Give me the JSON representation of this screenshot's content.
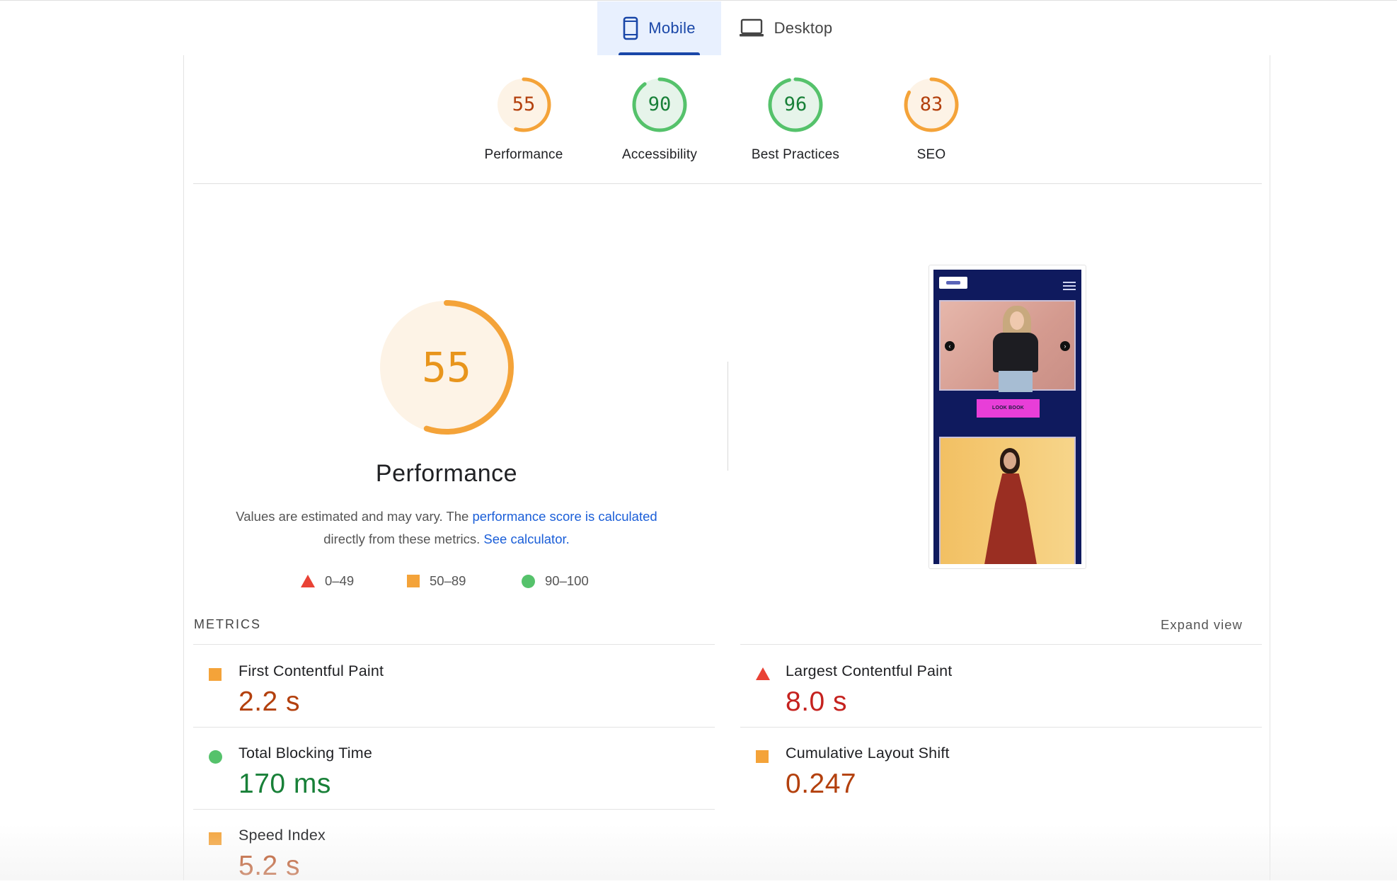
{
  "tabs": [
    {
      "label": "Mobile",
      "active": true,
      "icon": "phone-icon"
    },
    {
      "label": "Desktop",
      "active": false,
      "icon": "laptop-icon"
    }
  ],
  "categories": [
    {
      "score": "55",
      "label": "Performance",
      "color": "#f4a339",
      "text_color": "#b3400d",
      "bg": "#fdf3e6",
      "fraction": 0.55
    },
    {
      "score": "90",
      "label": "Accessibility",
      "color": "#55c26b",
      "text_color": "#188038",
      "bg": "#e6f4ea",
      "fraction": 0.9
    },
    {
      "score": "96",
      "label": "Best Practices",
      "color": "#55c26b",
      "text_color": "#188038",
      "bg": "#e6f4ea",
      "fraction": 0.96
    },
    {
      "score": "83",
      "label": "SEO",
      "color": "#f4a339",
      "text_color": "#b3400d",
      "bg": "#fdf3e6",
      "fraction": 0.83
    }
  ],
  "performance": {
    "score": "55",
    "fraction": 0.55,
    "title": "Performance",
    "desc_prefix": "Values are estimated and may vary. The ",
    "desc_link1": "performance score is calculated",
    "desc_middle": " directly from these metrics. ",
    "desc_link2": "See calculator.",
    "legend": {
      "low": "0–49",
      "mid": "50–89",
      "high": "90–100"
    }
  },
  "screenshot": {
    "button_label": "LOOK BOOK"
  },
  "metrics": {
    "heading": "METRICS",
    "expand_label": "Expand view",
    "items": [
      {
        "name": "First Contentful Paint",
        "value": "2.2 s",
        "rating": "average"
      },
      {
        "name": "Largest Contentful Paint",
        "value": "8.0 s",
        "rating": "fail"
      },
      {
        "name": "Total Blocking Time",
        "value": "170 ms",
        "rating": "pass"
      },
      {
        "name": "Cumulative Layout Shift",
        "value": "0.247",
        "rating": "average"
      },
      {
        "name": "Speed Index",
        "value": "5.2 s",
        "rating": "average"
      }
    ]
  },
  "colors": {
    "fail": "#e94235",
    "average": "#f4a339",
    "pass": "#55c26b",
    "accent": "#1a47a8",
    "link": "#1a5ed8"
  }
}
